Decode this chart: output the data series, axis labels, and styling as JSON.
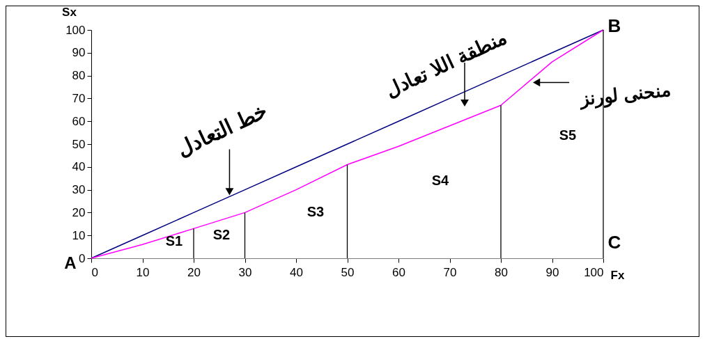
{
  "chart_data": {
    "type": "line",
    "xlabel": "Fx",
    "ylabel": "Sx",
    "xlim": [
      0,
      100
    ],
    "ylim": [
      0,
      100
    ],
    "xticks": [
      0,
      10,
      20,
      30,
      40,
      50,
      60,
      70,
      80,
      90,
      100
    ],
    "yticks": [
      0,
      10,
      20,
      30,
      40,
      50,
      60,
      70,
      80,
      90,
      100
    ],
    "series": [
      {
        "color": "#000080",
        "x": [
          0,
          10,
          20,
          30,
          40,
          50,
          60,
          70,
          80,
          90,
          100
        ],
        "values": [
          0,
          10,
          20,
          30,
          40,
          50,
          60,
          70,
          80,
          90,
          100
        ]
      },
      {
        "color": "#ff00ff",
        "x": [
          0,
          10,
          20,
          30,
          40,
          50,
          60,
          70,
          80,
          90,
          100
        ],
        "values": [
          0,
          6,
          13,
          20,
          30,
          41,
          49,
          58,
          67,
          86,
          100
        ]
      }
    ],
    "ref_lines": [
      {
        "axis": "x",
        "value": 20,
        "color": "#000000"
      },
      {
        "axis": "x",
        "value": 30,
        "color": "#000000"
      },
      {
        "axis": "x",
        "value": 50,
        "color": "#000000"
      },
      {
        "axis": "x",
        "value": 80,
        "color": "#000000"
      },
      {
        "axis": "x",
        "value": 100,
        "color": "#000000"
      }
    ],
    "annotations": [
      {
        "text": "خط التعادل",
        "x": 27,
        "y": 27
      },
      "منطقة اللا تعادل",
      {
        "text": "منحنى لورنز",
        "x": 86,
        "y": 77
      },
      {
        "text": "A",
        "x": 0,
        "y": 0
      },
      {
        "text": "B",
        "x": 100,
        "y": 100
      },
      {
        "text": "C",
        "x": 100,
        "y": 0
      },
      "S1",
      "S2",
      "S3",
      "S4",
      "S5"
    ]
  }
}
